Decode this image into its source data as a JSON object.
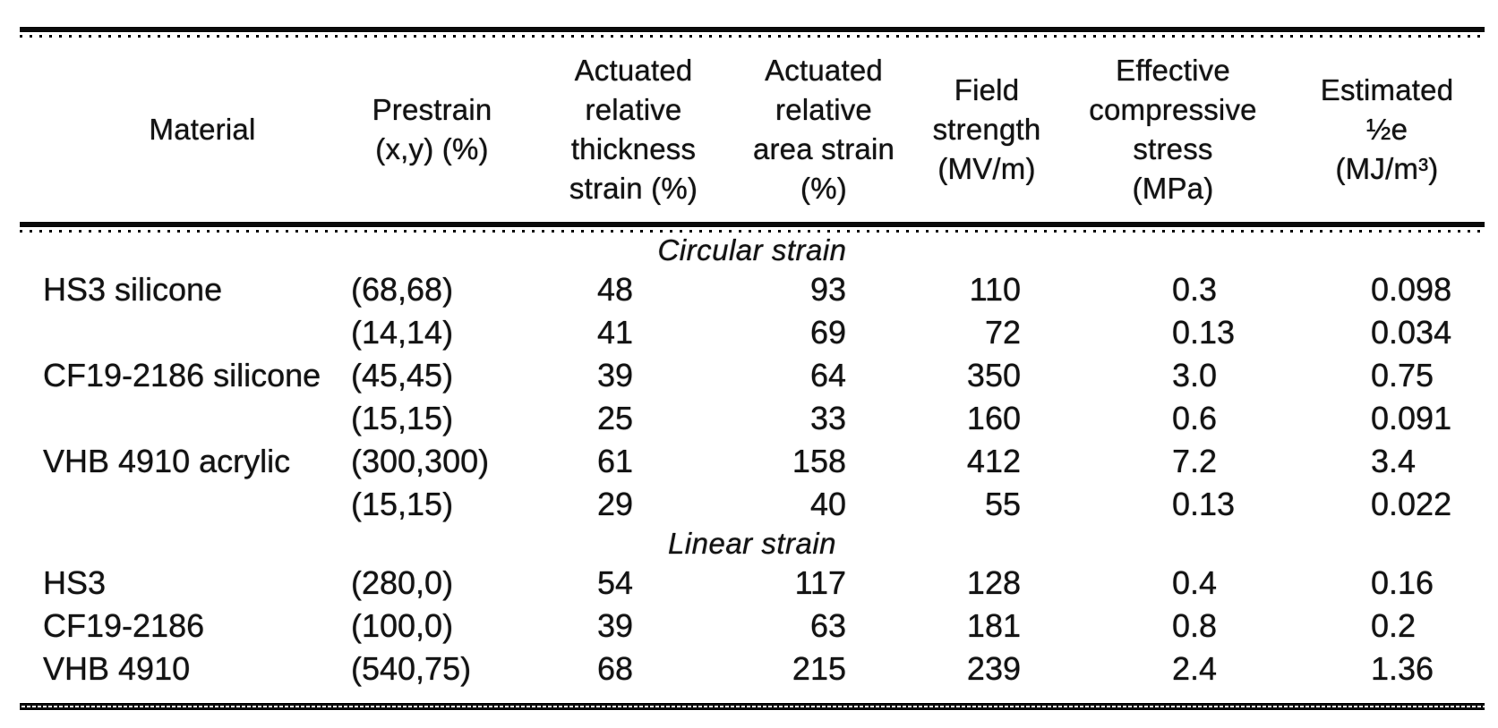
{
  "page": {
    "background": "#ffffff",
    "text_color": "#121212",
    "rule_color": "#0a0a0a"
  },
  "table": {
    "columns": [
      {
        "id": "material",
        "label": "Material"
      },
      {
        "id": "prestrain",
        "label": "Prestrain\n(x,y) (%)"
      },
      {
        "id": "thickness",
        "label": "Actuated\nrelative\nthickness\nstrain (%)"
      },
      {
        "id": "area",
        "label": "Actuated\nrelative\narea strain\n(%)"
      },
      {
        "id": "field",
        "label": "Field\nstrength\n(MV/m)"
      },
      {
        "id": "stress",
        "label": "Effective\ncompressive\nstress\n(MPa)"
      },
      {
        "id": "energy",
        "label": "Estimated\n½e\n(MJ/m³)"
      }
    ],
    "sections": [
      {
        "label": "Circular strain",
        "rows": [
          {
            "material": "HS3 silicone",
            "prestrain": "(68,68)",
            "thickness": "48",
            "area": "93",
            "field": "110",
            "stress": "0.3",
            "energy": "0.098"
          },
          {
            "material": "",
            "prestrain": "(14,14)",
            "thickness": "41",
            "area": "69",
            "field": "72",
            "stress": "0.13",
            "energy": "0.034"
          },
          {
            "material": "CF19-2186 silicone",
            "prestrain": "(45,45)",
            "thickness": "39",
            "area": "64",
            "field": "350",
            "stress": "3.0",
            "energy": "0.75"
          },
          {
            "material": "",
            "prestrain": "(15,15)",
            "thickness": "25",
            "area": "33",
            "field": "160",
            "stress": "0.6",
            "energy": "0.091"
          },
          {
            "material": "VHB 4910 acrylic",
            "prestrain": "(300,300)",
            "thickness": "61",
            "area": "158",
            "field": "412",
            "stress": "7.2",
            "energy": "3.4"
          },
          {
            "material": "",
            "prestrain": "(15,15)",
            "thickness": "29",
            "area": "40",
            "field": "55",
            "stress": "0.13",
            "energy": "0.022"
          }
        ]
      },
      {
        "label": "Linear strain",
        "rows": [
          {
            "material": "HS3",
            "prestrain": "(280,0)",
            "thickness": "54",
            "area": "117",
            "field": "128",
            "stress": "0.4",
            "energy": "0.16"
          },
          {
            "material": "CF19-2186",
            "prestrain": "(100,0)",
            "thickness": "39",
            "area": "63",
            "field": "181",
            "stress": "0.8",
            "energy": "0.2"
          },
          {
            "material": "VHB 4910",
            "prestrain": "(540,75)",
            "thickness": "68",
            "area": "215",
            "field": "239",
            "stress": "2.4",
            "energy": "1.36"
          }
        ]
      }
    ]
  }
}
